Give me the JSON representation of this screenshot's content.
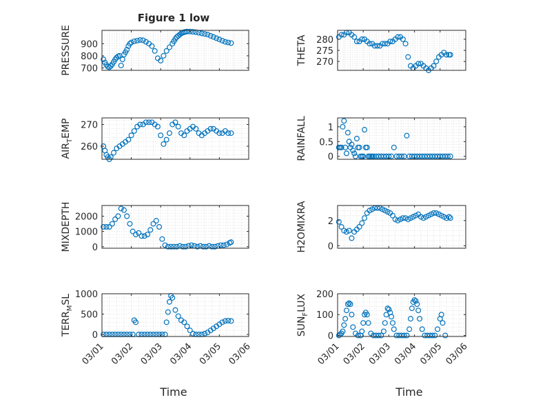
{
  "figure_title": "Figure 1 low",
  "xaxis_label": "Time",
  "x_tick_labels": [
    "03/01",
    "03/02",
    "03/03",
    "03/04",
    "03/05",
    "03/06"
  ],
  "marker_color": "#0072bd",
  "chart_data": [
    {
      "type": "scatter",
      "ylabel": "PRESSURE",
      "title": "Figure 1 low",
      "ylim": [
        680,
        1010
      ],
      "yticks": [
        700,
        800,
        900
      ],
      "grid": true,
      "x": [
        0.05,
        0.1,
        0.15,
        0.2,
        0.25,
        0.3,
        0.35,
        0.4,
        0.45,
        0.5,
        0.55,
        0.6,
        0.65,
        0.7,
        0.75,
        0.8,
        0.85,
        0.9,
        0.95,
        1.0,
        1.1,
        1.2,
        1.3,
        1.4,
        1.5,
        1.6,
        1.7,
        1.8,
        1.9,
        2.0,
        2.1,
        2.2,
        2.3,
        2.4,
        2.45,
        2.5,
        2.55,
        2.6,
        2.65,
        2.7,
        2.75,
        2.8,
        2.85,
        2.9,
        3.0,
        3.1,
        3.2,
        3.3,
        3.4,
        3.5,
        3.6,
        3.7,
        3.8,
        3.9,
        4.0,
        4.1,
        4.2,
        4.3,
        4.4
      ],
      "y": [
        770,
        745,
        725,
        710,
        705,
        715,
        730,
        750,
        770,
        785,
        795,
        800,
        720,
        770,
        810,
        830,
        850,
        880,
        900,
        910,
        920,
        925,
        930,
        928,
        915,
        900,
        880,
        840,
        780,
        760,
        800,
        840,
        870,
        900,
        920,
        940,
        955,
        965,
        975,
        985,
        990,
        995,
        998,
        1000,
        1000,
        998,
        995,
        990,
        985,
        980,
        975,
        965,
        955,
        945,
        935,
        925,
        915,
        910,
        905
      ]
    },
    {
      "type": "scatter",
      "ylabel": "THETA",
      "ylim": [
        266,
        284
      ],
      "yticks": [
        270,
        275,
        280
      ],
      "grid": true,
      "x": [
        0.05,
        0.15,
        0.25,
        0.35,
        0.45,
        0.55,
        0.65,
        0.75,
        0.85,
        0.95,
        1.05,
        1.15,
        1.25,
        1.35,
        1.45,
        1.55,
        1.65,
        1.75,
        1.85,
        1.95,
        2.05,
        2.15,
        2.25,
        2.35,
        2.45,
        2.55,
        2.65,
        2.75,
        2.85,
        2.95,
        3.05,
        3.15,
        3.25,
        3.35,
        3.45,
        3.55,
        3.65,
        3.75,
        3.85,
        3.95,
        4.05,
        4.15,
        4.25,
        4.35,
        4.4
      ],
      "y": [
        281,
        282,
        282,
        283,
        283,
        282,
        281,
        279,
        279,
        280,
        280,
        279,
        278,
        278,
        277,
        277,
        277,
        278,
        278,
        278,
        279,
        279,
        280,
        281,
        281,
        280,
        278,
        272,
        268,
        267,
        268,
        269,
        269,
        268,
        267,
        266,
        267,
        268,
        270,
        272,
        273,
        274,
        273,
        273,
        273
      ]
    },
    {
      "type": "scatter",
      "ylabel": "AIR_TEMP",
      "ylim": [
        254,
        273
      ],
      "yticks": [
        260,
        270
      ],
      "grid": true,
      "x": [
        0.05,
        0.1,
        0.15,
        0.2,
        0.25,
        0.3,
        0.4,
        0.5,
        0.6,
        0.7,
        0.8,
        0.9,
        1.0,
        1.1,
        1.2,
        1.3,
        1.4,
        1.5,
        1.6,
        1.7,
        1.8,
        1.9,
        2.0,
        2.1,
        2.2,
        2.3,
        2.4,
        2.5,
        2.6,
        2.7,
        2.8,
        2.9,
        3.0,
        3.1,
        3.2,
        3.3,
        3.4,
        3.5,
        3.6,
        3.7,
        3.8,
        3.9,
        4.0,
        4.1,
        4.2,
        4.3,
        4.4
      ],
      "y": [
        260,
        258,
        256,
        255,
        254,
        255,
        257,
        259,
        260,
        261,
        262,
        263,
        265,
        267,
        269,
        270,
        270,
        271,
        271,
        271,
        270,
        269,
        265,
        261,
        263,
        266,
        270,
        271,
        269,
        266,
        265,
        267,
        268,
        269,
        268,
        266,
        265,
        266,
        267,
        268,
        268,
        267,
        266,
        266,
        267,
        266,
        266
      ]
    },
    {
      "type": "scatter",
      "ylabel": "RAINFALL",
      "ylim": [
        -0.1,
        1.3
      ],
      "yticks": [
        0,
        0.5,
        1
      ],
      "ytick_labels": [
        "0",
        "0.5",
        "1"
      ],
      "grid": true,
      "x": [
        0.05,
        0.1,
        0.15,
        0.2,
        0.25,
        0.3,
        0.35,
        0.4,
        0.45,
        0.5,
        0.55,
        0.6,
        0.65,
        0.7,
        0.75,
        0.8,
        0.85,
        0.9,
        0.95,
        1.0,
        1.05,
        1.1,
        1.15,
        1.2,
        1.25,
        1.3,
        1.35,
        1.4,
        1.5,
        1.6,
        1.7,
        1.8,
        1.9,
        2.0,
        2.1,
        2.2,
        2.3,
        2.4,
        2.5,
        2.6,
        2.7,
        2.8,
        2.9,
        3.0,
        3.1,
        3.2,
        3.3,
        3.4,
        3.5,
        3.6,
        3.7,
        3.8,
        3.9,
        4.0,
        4.1,
        4.2,
        4.3,
        4.4
      ],
      "y": [
        0.3,
        0.3,
        0.3,
        1.0,
        1.2,
        0.3,
        0.1,
        0.8,
        0.5,
        0.3,
        0.4,
        0.2,
        0.1,
        0.0,
        0.6,
        0.3,
        0.3,
        0.0,
        0.0,
        0.0,
        0.9,
        0.3,
        0.3,
        0.0,
        0.0,
        0.0,
        0.0,
        0.0,
        0.0,
        0.0,
        0.0,
        0.0,
        0.0,
        0.0,
        0.0,
        0.3,
        0.0,
        0.0,
        0.0,
        0.0,
        0.7,
        0.0,
        0.0,
        0.0,
        0.0,
        0.0,
        0.0,
        0.0,
        0.0,
        0.0,
        0.0,
        0.0,
        0.0,
        0.0,
        0.0,
        0.0,
        0.0,
        0.0
      ]
    },
    {
      "type": "scatter",
      "ylabel": "MIXDEPTH",
      "ylim": [
        -100,
        2700
      ],
      "yticks": [
        0,
        1000,
        2000
      ],
      "grid": true,
      "x": [
        0.05,
        0.15,
        0.25,
        0.35,
        0.45,
        0.55,
        0.65,
        0.75,
        0.85,
        0.95,
        1.05,
        1.15,
        1.25,
        1.35,
        1.45,
        1.55,
        1.65,
        1.75,
        1.85,
        1.95,
        2.05,
        2.15,
        2.25,
        2.35,
        2.45,
        2.55,
        2.65,
        2.75,
        2.85,
        2.95,
        3.05,
        3.15,
        3.25,
        3.35,
        3.45,
        3.55,
        3.65,
        3.75,
        3.85,
        3.95,
        4.05,
        4.15,
        4.25,
        4.35,
        4.4
      ],
      "y": [
        1300,
        1300,
        1300,
        1500,
        1800,
        2000,
        2500,
        2400,
        2000,
        1500,
        1000,
        800,
        900,
        700,
        700,
        800,
        1100,
        1500,
        1700,
        1300,
        500,
        100,
        0,
        0,
        0,
        0,
        50,
        0,
        0,
        50,
        100,
        50,
        0,
        50,
        0,
        0,
        50,
        0,
        0,
        50,
        100,
        100,
        150,
        250,
        300
      ]
    },
    {
      "type": "scatter",
      "ylabel": "H2OMIXRA",
      "ylim": [
        -0.2,
        3.2
      ],
      "yticks": [
        0,
        2
      ],
      "grid": true,
      "x": [
        0.05,
        0.15,
        0.25,
        0.35,
        0.45,
        0.55,
        0.65,
        0.75,
        0.85,
        0.95,
        1.05,
        1.15,
        1.25,
        1.35,
        1.45,
        1.55,
        1.65,
        1.75,
        1.85,
        1.95,
        2.05,
        2.15,
        2.25,
        2.35,
        2.45,
        2.55,
        2.65,
        2.75,
        2.85,
        2.95,
        3.05,
        3.15,
        3.25,
        3.35,
        3.45,
        3.55,
        3.65,
        3.75,
        3.85,
        3.95,
        4.05,
        4.15,
        4.25,
        4.35,
        4.4
      ],
      "y": [
        1.9,
        1.5,
        1.2,
        1.1,
        1.2,
        0.6,
        1.1,
        1.3,
        1.5,
        1.8,
        2.2,
        2.6,
        2.8,
        2.9,
        3.0,
        3.0,
        3.0,
        2.9,
        2.8,
        2.7,
        2.6,
        2.4,
        2.1,
        2.0,
        2.1,
        2.2,
        2.2,
        2.1,
        2.2,
        2.3,
        2.4,
        2.5,
        2.3,
        2.2,
        2.3,
        2.4,
        2.5,
        2.6,
        2.6,
        2.5,
        2.4,
        2.3,
        2.2,
        2.3,
        2.2
      ]
    },
    {
      "type": "scatter",
      "ylabel": "TERR_MSL",
      "ylim": [
        -50,
        1000
      ],
      "yticks": [
        0,
        500,
        1000
      ],
      "grid": true,
      "x": [
        0.05,
        0.15,
        0.25,
        0.35,
        0.45,
        0.55,
        0.65,
        0.75,
        0.85,
        0.95,
        1.05,
        1.1,
        1.15,
        1.25,
        1.35,
        1.45,
        1.55,
        1.65,
        1.75,
        1.85,
        1.95,
        2.05,
        2.15,
        2.2,
        2.25,
        2.3,
        2.35,
        2.4,
        2.5,
        2.6,
        2.7,
        2.8,
        2.9,
        3.0,
        3.1,
        3.2,
        3.3,
        3.4,
        3.5,
        3.6,
        3.7,
        3.8,
        3.9,
        4.0,
        4.1,
        4.2,
        4.3,
        4.4
      ],
      "y": [
        0,
        0,
        0,
        0,
        0,
        0,
        0,
        0,
        0,
        0,
        0,
        350,
        300,
        0,
        0,
        0,
        0,
        0,
        0,
        0,
        0,
        0,
        0,
        300,
        550,
        800,
        950,
        900,
        600,
        450,
        350,
        300,
        200,
        100,
        20,
        0,
        0,
        0,
        20,
        50,
        100,
        150,
        200,
        250,
        300,
        330,
        340,
        330
      ]
    },
    {
      "type": "scatter",
      "ylabel": "SUN_FLUX",
      "ylim": [
        -5,
        200
      ],
      "yticks": [
        0,
        100,
        200
      ],
      "grid": true,
      "x": [
        0.05,
        0.1,
        0.15,
        0.2,
        0.25,
        0.3,
        0.35,
        0.4,
        0.45,
        0.5,
        0.55,
        0.6,
        0.7,
        0.8,
        0.9,
        0.95,
        1.0,
        1.05,
        1.1,
        1.15,
        1.2,
        1.3,
        1.4,
        1.5,
        1.6,
        1.7,
        1.8,
        1.85,
        1.9,
        1.95,
        2.0,
        2.05,
        2.1,
        2.15,
        2.2,
        2.3,
        2.4,
        2.5,
        2.6,
        2.7,
        2.8,
        2.85,
        2.9,
        2.95,
        3.0,
        3.05,
        3.1,
        3.15,
        3.2,
        3.3,
        3.4,
        3.5,
        3.6,
        3.7,
        3.8,
        3.9,
        4.0,
        4.05,
        4.1,
        4.2
      ],
      "y": [
        0,
        5,
        10,
        20,
        50,
        80,
        120,
        150,
        155,
        150,
        100,
        40,
        10,
        0,
        0,
        20,
        60,
        100,
        110,
        100,
        60,
        10,
        0,
        0,
        0,
        0,
        20,
        60,
        100,
        130,
        125,
        110,
        90,
        60,
        30,
        0,
        0,
        0,
        0,
        0,
        30,
        80,
        130,
        160,
        170,
        165,
        150,
        120,
        80,
        30,
        0,
        0,
        0,
        0,
        0,
        30,
        80,
        100,
        60,
        0
      ]
    }
  ]
}
